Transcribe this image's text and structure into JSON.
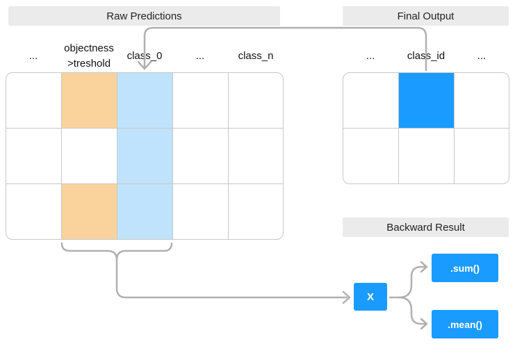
{
  "raw": {
    "title": "Raw Predictions",
    "columns": [
      "...",
      "objectness\n>treshold",
      "class_0",
      "...",
      "class_n"
    ]
  },
  "final": {
    "title": "Final Output",
    "columns": [
      "...",
      "class_id",
      "..."
    ]
  },
  "backward": {
    "title": "Backward Result",
    "op_x": "X",
    "sum": ".sum()",
    "mean": ".mean()"
  },
  "colors": {
    "objectness": "#fad39c",
    "class": "#bfe3fc",
    "class_id": "#1a9bff",
    "connector": "#b0b0b0",
    "button": "#1a9bff"
  }
}
